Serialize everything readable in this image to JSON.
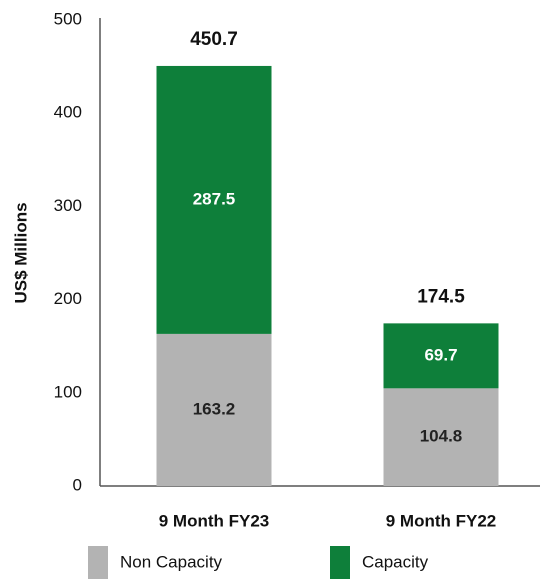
{
  "chart_data": {
    "type": "stacked_bar",
    "y_axis_label": "US$ Millions",
    "categories": [
      "9 Month FY23",
      "9 Month FY22"
    ],
    "series": [
      {
        "name": "Non Capacity",
        "color": "#b3b3b3",
        "values": [
          163.2,
          104.8
        ]
      },
      {
        "name": "Capacity",
        "color": "#0e7f3a",
        "values": [
          287.5,
          69.7
        ]
      }
    ],
    "totals": [
      450.7,
      174.5
    ],
    "ylim": [
      0,
      500
    ],
    "yticks": [
      0,
      100,
      200,
      300,
      400,
      500
    ],
    "legend": "bottom"
  }
}
